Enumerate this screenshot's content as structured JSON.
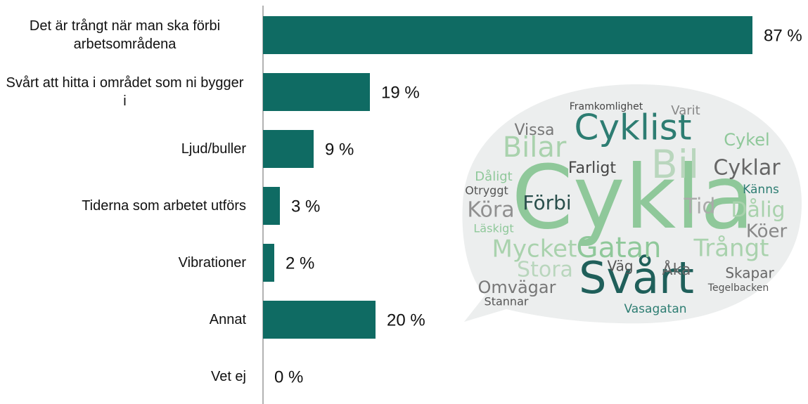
{
  "chart_data": {
    "type": "bar",
    "orientation": "horizontal",
    "categories": [
      "Det är trångt när man ska förbi arbetsområdena",
      "Svårt att hitta i området som ni bygger i",
      "Ljud/buller",
      "Tiderna som arbetet utförs",
      "Vibrationer",
      "Annat",
      "Vet ej"
    ],
    "values": [
      87,
      19,
      9,
      3,
      2,
      20,
      0
    ],
    "value_labels": [
      "87 %",
      "19 %",
      "9 %",
      "3 %",
      "2 %",
      "20 %",
      "0 %"
    ],
    "color": "#0f6b63"
  },
  "word_cloud": {
    "words": [
      "Cykla",
      "Svårt",
      "Cyklist",
      "Bil",
      "Bilar",
      "Gatan",
      "Trångt",
      "Mycket",
      "Stora",
      "Köra",
      "Förbi",
      "Dålig",
      "Köer",
      "Cyklar",
      "Cykel",
      "Omvägar",
      "Skapar",
      "Farligt",
      "Vissa",
      "Känns",
      "Åka",
      "Väg",
      "Tegelbacken",
      "Vasagatan",
      "Stannar",
      "Framkomlighet",
      "Dåligt",
      "Otryggt",
      "Läskigt",
      "Tid",
      "Varit"
    ]
  }
}
